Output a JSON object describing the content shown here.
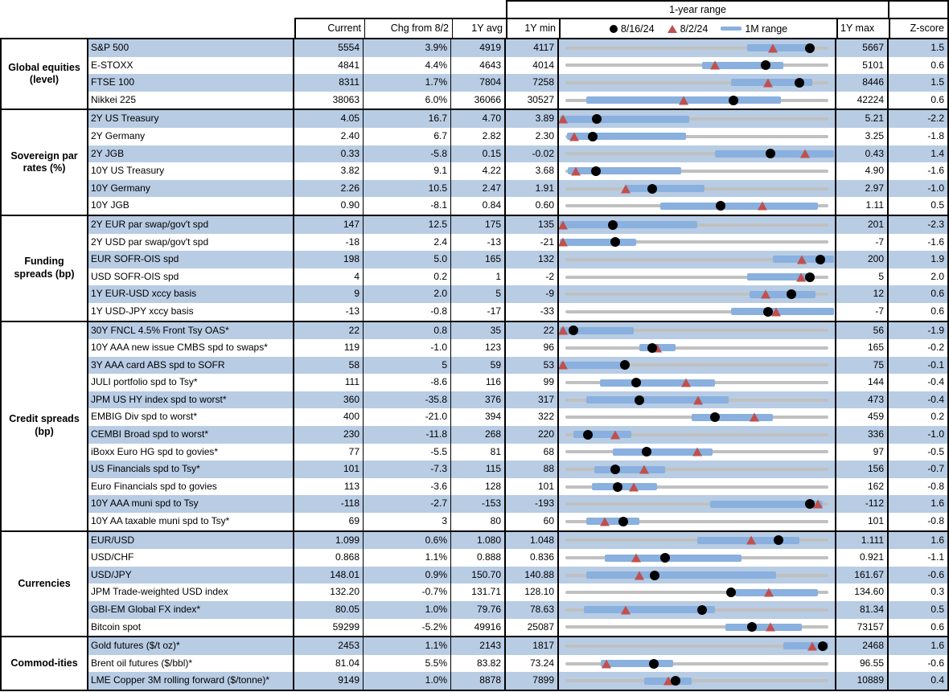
{
  "colors": {
    "row_shade": "#b8cce4",
    "range_bar_blue": "#89b0de",
    "marker_red": "#c0504d",
    "track_gray": "#c0c0c0",
    "dot_black": "#000000"
  },
  "chart_data": {
    "type": "table",
    "title": "1-year range",
    "legend": [
      "8/16/24",
      "8/2/24",
      "1M range"
    ],
    "columns": [
      "Current",
      "Chg from 8/2",
      "1Y avg",
      "1Y min",
      "1Y max",
      "Z-score"
    ],
    "legend_note": "black dot = 8/16/24 value, red triangle = 8/2/24 value, blue bar = 1M range, gray line = 1Y min-max range; range positions are fractions of the 1Y min-max track",
    "sections": [
      {
        "group": "Global equities (level)",
        "rows": [
          {
            "label": "S&P 500",
            "current": "5554",
            "chg": "3.9%",
            "avg": "4919",
            "min": "4117",
            "max": "5667",
            "z": "1.5",
            "range": {
              "bar": [
                0.69,
                0.92
              ],
              "dot": 0.93,
              "tri": 0.79
            }
          },
          {
            "label": "E-STOXX",
            "current": "4841",
            "chg": "4.4%",
            "avg": "4643",
            "min": "4014",
            "max": "5101",
            "z": "0.6",
            "range": {
              "bar": [
                0.52,
                0.83
              ],
              "dot": 0.76,
              "tri": 0.57
            }
          },
          {
            "label": "FTSE 100",
            "current": "8311",
            "chg": "1.7%",
            "avg": "7804",
            "min": "7258",
            "max": "8446",
            "z": "1.5",
            "range": {
              "bar": [
                0.63,
                0.94
              ],
              "dot": 0.89,
              "tri": 0.77
            }
          },
          {
            "label": "Nikkei 225",
            "current": "38063",
            "chg": "6.0%",
            "avg": "36066",
            "min": "30527",
            "max": "42224",
            "z": "0.6",
            "range": {
              "bar": [
                0.08,
                0.82
              ],
              "dot": 0.64,
              "tri": 0.45
            }
          }
        ]
      },
      {
        "group": "Sovereign par rates (%)",
        "rows": [
          {
            "label": "2Y US Treasury",
            "current": "4.05",
            "chg": "16.7",
            "avg": "4.70",
            "min": "3.89",
            "max": "5.21",
            "z": "-2.2",
            "range": {
              "bar": [
                -0.02,
                0.47
              ],
              "dot": 0.12,
              "tri": -0.01
            }
          },
          {
            "label": "2Y Germany",
            "current": "2.40",
            "chg": "6.7",
            "avg": "2.82",
            "min": "2.30",
            "max": "3.25",
            "z": "-1.8",
            "range": {
              "bar": [
                0.005,
                0.46
              ],
              "dot": 0.105,
              "tri": 0.035
            }
          },
          {
            "label": "2Y JGB",
            "current": "0.33",
            "chg": "-5.8",
            "avg": "0.15",
            "min": "-0.02",
            "max": "0.43",
            "z": "1.4",
            "range": {
              "bar": [
                0.57,
                1.02
              ],
              "dot": 0.78,
              "tri": 0.91
            }
          },
          {
            "label": "10Y US Treasury",
            "current": "3.82",
            "chg": "9.1",
            "avg": "4.22",
            "min": "3.68",
            "max": "4.90",
            "z": "-1.6",
            "range": {
              "bar": [
                0.01,
                0.44
              ],
              "dot": 0.115,
              "tri": 0.04
            }
          },
          {
            "label": "10Y Germany",
            "current": "2.26",
            "chg": "10.5",
            "avg": "2.47",
            "min": "1.91",
            "max": "2.97",
            "z": "-1.0",
            "range": {
              "bar": [
                0.225,
                0.53
              ],
              "dot": 0.33,
              "tri": 0.23
            }
          },
          {
            "label": "10Y JGB",
            "current": "0.90",
            "chg": "-8.1",
            "avg": "0.84",
            "min": "0.60",
            "max": "1.11",
            "z": "0.5",
            "range": {
              "bar": [
                0.36,
                0.96
              ],
              "dot": 0.59,
              "tri": 0.75
            }
          }
        ]
      },
      {
        "group": "Funding spreads (bp)",
        "rows": [
          {
            "label": "2Y EUR par swap/gov't spd",
            "current": "147",
            "chg": "12.5",
            "avg": "175",
            "min": "135",
            "max": "201",
            "z": "-2.3",
            "range": {
              "bar": [
                -0.02,
                0.5
              ],
              "dot": 0.18,
              "tri": -0.01
            }
          },
          {
            "label": "2Y USD par swap/gov't spd",
            "current": "-18",
            "chg": "2.4",
            "avg": "-13",
            "min": "-21",
            "max": "-7",
            "z": "-1.6",
            "range": {
              "bar": [
                -0.02,
                0.27
              ],
              "dot": 0.19,
              "tri": -0.01
            }
          },
          {
            "label": "EUR SOFR-OIS spd",
            "current": "198",
            "chg": "5.0",
            "avg": "165",
            "min": "132",
            "max": "200",
            "z": "1.9",
            "range": {
              "bar": [
                0.79,
                1.02
              ],
              "dot": 0.97,
              "tri": 0.9
            }
          },
          {
            "label": "USD SOFR-OIS spd",
            "current": "4",
            "chg": "0.2",
            "avg": "1",
            "min": "-2",
            "max": "5",
            "z": "2.0",
            "range": {
              "bar": [
                0.69,
                0.94
              ],
              "dot": 0.93,
              "tri": 0.895
            }
          },
          {
            "label": "1Y EUR-USD xccy basis",
            "current": "9",
            "chg": "2.0",
            "avg": "5",
            "min": "-9",
            "max": "12",
            "z": "0.6",
            "range": {
              "bar": [
                0.7,
                0.95
              ],
              "dot": 0.86,
              "tri": 0.76
            }
          },
          {
            "label": "1Y USD-JPY xccy basis",
            "current": "-13",
            "chg": "-0.8",
            "avg": "-17",
            "min": "-33",
            "max": "-7",
            "z": "0.6",
            "range": {
              "bar": [
                0.63,
                1.02
              ],
              "dot": 0.77,
              "tri": 0.8
            }
          }
        ]
      },
      {
        "group": "Credit spreads (bp)",
        "rows": [
          {
            "label": "30Y FNCL 4.5% Front Tsy OAS*",
            "current": "22",
            "chg": "0.8",
            "avg": "35",
            "min": "22",
            "max": "56",
            "z": "-1.9",
            "range": {
              "bar": [
                -0.02,
                0.26
              ],
              "dot": 0.03,
              "tri": -0.01
            }
          },
          {
            "label": "10Y AAA new issue CMBS spd to swaps*",
            "current": "119",
            "chg": "-1.0",
            "avg": "123",
            "min": "96",
            "max": "165",
            "z": "-0.2",
            "range": {
              "bar": [
                0.28,
                0.42
              ],
              "dot": 0.33,
              "tri": 0.35
            }
          },
          {
            "label": "3Y AAA card ABS spd to SOFR",
            "current": "58",
            "chg": "5",
            "avg": "59",
            "min": "53",
            "max": "75",
            "z": "-0.1",
            "range": {
              "bar": [
                -0.02,
                0.22
              ],
              "dot": 0.225,
              "tri": -0.01
            }
          },
          {
            "label": "JULI portfolio spd to Tsy*",
            "current": "111",
            "chg": "-8.6",
            "avg": "116",
            "min": "99",
            "max": "144",
            "z": "-0.4",
            "range": {
              "bar": [
                0.13,
                0.57
              ],
              "dot": 0.27,
              "tri": 0.46
            }
          },
          {
            "label": "JPM US HY index spd to worst*",
            "current": "360",
            "chg": "-35.8",
            "avg": "376",
            "min": "317",
            "max": "473",
            "z": "-0.4",
            "range": {
              "bar": [
                0.08,
                0.62
              ],
              "dot": 0.28,
              "tri": 0.505
            }
          },
          {
            "label": "EMBIG Div spd to worst*",
            "current": "400",
            "chg": "-21.0",
            "avg": "394",
            "min": "322",
            "max": "459",
            "z": "0.2",
            "range": {
              "bar": [
                0.48,
                0.79
              ],
              "dot": 0.57,
              "tri": 0.72
            }
          },
          {
            "label": "CEMBI Broad spd to worst*",
            "current": "230",
            "chg": "-11.8",
            "avg": "268",
            "min": "220",
            "max": "336",
            "z": "-1.0",
            "range": {
              "bar": [
                0.03,
                0.25
              ],
              "dot": 0.085,
              "tri": 0.19
            }
          },
          {
            "label": "iBoxx Euro HG spd to govies*",
            "current": "77",
            "chg": "-5.5",
            "avg": "81",
            "min": "68",
            "max": "97",
            "z": "-0.5",
            "range": {
              "bar": [
                0.18,
                0.56
              ],
              "dot": 0.31,
              "tri": 0.5
            }
          },
          {
            "label": "US Financials spd to Tsy*",
            "current": "101",
            "chg": "-7.3",
            "avg": "115",
            "min": "88",
            "max": "156",
            "z": "-0.7",
            "range": {
              "bar": [
                0.11,
                0.38
              ],
              "dot": 0.19,
              "tri": 0.3
            }
          },
          {
            "label": "Euro Financials spd to govies",
            "current": "113",
            "chg": "-3.6",
            "avg": "128",
            "min": "101",
            "max": "162",
            "z": "-0.8",
            "range": {
              "bar": [
                0.1,
                0.35
              ],
              "dot": 0.2,
              "tri": 0.26
            }
          },
          {
            "label": "10Y AAA muni spd to Tsy",
            "current": "-118",
            "chg": "-2.7",
            "avg": "-153",
            "min": "-193",
            "max": "-112",
            "z": "1.6",
            "range": {
              "bar": [
                0.55,
                0.98
              ],
              "dot": 0.93,
              "tri": 0.96
            }
          },
          {
            "label": "10Y AA taxable muni spd to Tsy*",
            "current": "69",
            "chg": "3",
            "avg": "80",
            "min": "60",
            "max": "101",
            "z": "-0.8",
            "range": {
              "bar": [
                0.08,
                0.28
              ],
              "dot": 0.22,
              "tri": 0.15
            }
          }
        ]
      },
      {
        "group": "Currencies",
        "rows": [
          {
            "label": "EUR/USD",
            "current": "1.099",
            "chg": "0.6%",
            "avg": "1.080",
            "min": "1.048",
            "max": "1.111",
            "z": "1.6",
            "range": {
              "bar": [
                0.5,
                0.89
              ],
              "dot": 0.81,
              "tri": 0.705
            }
          },
          {
            "label": "USD/CHF",
            "current": "0.868",
            "chg": "1.1%",
            "avg": "0.888",
            "min": "0.836",
            "max": "0.921",
            "z": "-1.1",
            "range": {
              "bar": [
                0.15,
                0.67
              ],
              "dot": 0.38,
              "tri": 0.27
            }
          },
          {
            "label": "USD/JPY",
            "current": "148.01",
            "chg": "0.9%",
            "avg": "150.70",
            "min": "140.88",
            "max": "161.67",
            "z": "-0.6",
            "range": {
              "bar": [
                0.08,
                0.8
              ],
              "dot": 0.34,
              "tri": 0.28
            }
          },
          {
            "label": "JPM Trade-weighted USD index",
            "current": "132.20",
            "chg": "-0.7%",
            "avg": "131.71",
            "min": "128.10",
            "max": "134.60",
            "z": "0.3",
            "range": {
              "bar": [
                0.645,
                0.96
              ],
              "dot": 0.63,
              "tri": 0.775
            }
          },
          {
            "label": "GBI-EM Global FX index*",
            "current": "80.05",
            "chg": "1.0%",
            "avg": "79.76",
            "min": "78.63",
            "max": "81.34",
            "z": "0.5",
            "range": {
              "bar": [
                0.07,
                0.57
              ],
              "dot": 0.52,
              "tri": 0.23
            }
          },
          {
            "label": "Bitcoin spot",
            "current": "59299",
            "chg": "-5.2%",
            "avg": "49916",
            "min": "25087",
            "max": "73157",
            "z": "0.6",
            "range": {
              "bar": [
                0.61,
                0.9
              ],
              "dot": 0.71,
              "tri": 0.78
            }
          }
        ]
      },
      {
        "group": "Commod-ities",
        "rows": [
          {
            "label": "Gold futures ($/t oz)*",
            "current": "2453",
            "chg": "1.1%",
            "avg": "2143",
            "min": "1817",
            "max": "2468",
            "z": "1.6",
            "range": {
              "bar": [
                0.83,
                1.0
              ],
              "dot": 0.98,
              "tri": 0.94
            }
          },
          {
            "label": "Brent oil futures ($/bbl)*",
            "current": "81.04",
            "chg": "5.5%",
            "avg": "83.82",
            "min": "73.24",
            "max": "96.55",
            "z": "-0.6",
            "range": {
              "bar": [
                0.135,
                0.41
              ],
              "dot": 0.335,
              "tri": 0.155
            }
          },
          {
            "label": "LME Copper 3M rolling forward ($/tonne)*",
            "current": "9149",
            "chg": "1.0%",
            "avg": "8878",
            "min": "7899",
            "max": "10889",
            "z": "0.4",
            "range": {
              "bar": [
                0.3,
                0.48
              ],
              "dot": 0.42,
              "tri": 0.39
            }
          }
        ]
      }
    ]
  }
}
